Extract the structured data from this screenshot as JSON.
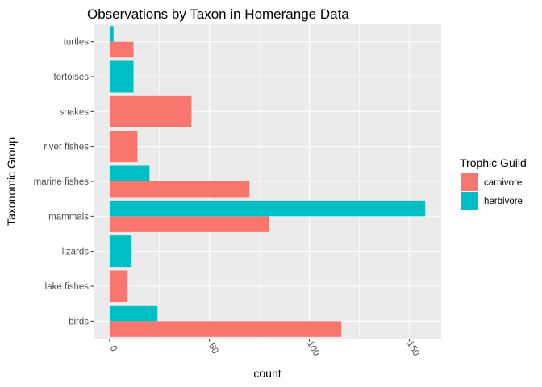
{
  "chart_data": {
    "type": "bar",
    "orientation": "horizontal",
    "position": "dodge",
    "title": "Observations by Taxon in Homerange Data",
    "xlabel": "count",
    "ylabel": "Taxonomic Group",
    "categories": [
      "turtles",
      "tortoises",
      "snakes",
      "river fishes",
      "marine fishes",
      "mammals",
      "lizards",
      "lake fishes",
      "birds"
    ],
    "x_ticks": [
      0,
      50,
      100,
      150
    ],
    "xlim": [
      -8,
      166
    ],
    "x_tick_angle": 60,
    "grid": true,
    "legend": {
      "title": "Trophic Guild",
      "placement": "right",
      "entries": [
        {
          "name": "carnivore",
          "color": "#F8766D"
        },
        {
          "name": "herbivore",
          "color": "#00BFC4"
        }
      ]
    },
    "series": [
      {
        "name": "carnivore",
        "color": "#F8766D",
        "values": [
          12,
          null,
          41,
          14,
          70,
          80,
          null,
          9,
          116
        ]
      },
      {
        "name": "herbivore",
        "color": "#00BFC4",
        "values": [
          2,
          12,
          null,
          null,
          20,
          158,
          11,
          null,
          24
        ]
      }
    ],
    "panel_background": "#EBEBEB",
    "grid_color": "#FFFFFF"
  }
}
